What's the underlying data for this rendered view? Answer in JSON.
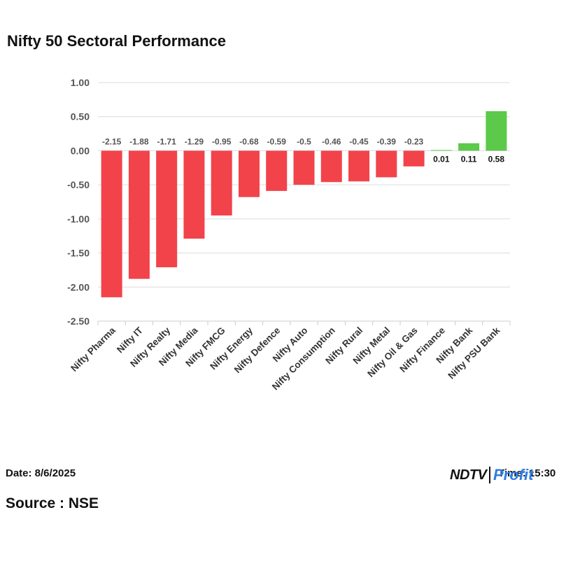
{
  "title": "Nifty 50 Sectoral Performance",
  "footer": {
    "date": "Date: 8/6/2025",
    "time": "Time: 15:30",
    "source": "Source : NSE",
    "logo_ndtv": "NDTV",
    "logo_profit": "Profit"
  },
  "colors": {
    "negative": "#f2434b",
    "positive": "#5cc94a",
    "grid": "#dcdcdc"
  },
  "chart_data": {
    "type": "bar",
    "title": "Nifty 50 Sectoral Performance",
    "categories": [
      "Nifty Pharma",
      "Nifty IT",
      "Nifty Realty",
      "Nifty Media",
      "Nifty FMCG",
      "Nifty Energy",
      "Nifty Defence",
      "Nifty Auto",
      "Nifty Consumption",
      "Nifty Rural",
      "Nifty Metal",
      "Nifty Oil & Gas",
      "Nifty Finance",
      "Nifty Bank",
      "Nifty PSU Bank"
    ],
    "values": [
      -2.15,
      -1.88,
      -1.71,
      -1.29,
      -0.95,
      -0.68,
      -0.59,
      -0.5,
      -0.46,
      -0.45,
      -0.39,
      -0.23,
      0.01,
      0.11,
      0.58
    ],
    "value_labels": [
      "-2.15",
      "-1.88",
      "-1.71",
      "-1.29",
      "-0.95",
      "-0.68",
      "-0.59",
      "-0.5",
      "-0.46",
      "-0.45",
      "-0.39",
      "-0.23",
      "0.01",
      "0.11",
      "0.58"
    ],
    "yticks": [
      1.0,
      0.5,
      0.0,
      -0.5,
      -1.0,
      -1.5,
      -2.0,
      -2.5
    ],
    "ytick_labels": [
      "1.00",
      "0.50",
      "0.00",
      "-0.50",
      "-1.00",
      "-1.50",
      "-2.00",
      "-2.50"
    ],
    "ylim": [
      -2.5,
      1.0
    ],
    "xlabel": "",
    "ylabel": "",
    "grid": true,
    "legend": "none"
  }
}
